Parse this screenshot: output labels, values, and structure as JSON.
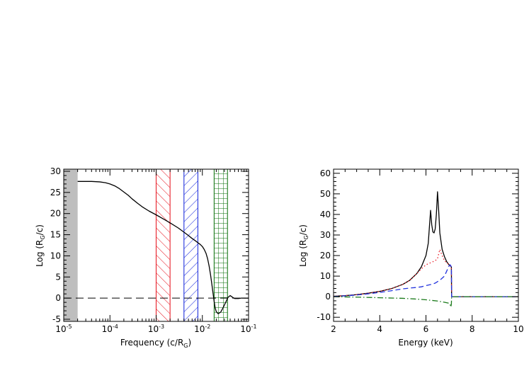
{
  "chart_data": [
    {
      "type": "line",
      "xlabel": "Frequency (c/R",
      "xlabel_sub": "G",
      "xlabel_end": ")",
      "ylabel": "Log (R",
      "ylabel_sub": "G",
      "ylabel_end": "/c)",
      "xscale": "log",
      "xlim": [
        1e-05,
        0.1
      ],
      "ylim": [
        -5.5,
        30.5
      ],
      "xticks": [
        {
          "value": 1e-05,
          "base": "10",
          "exp": "-5"
        },
        {
          "value": 0.0001,
          "base": "10",
          "exp": "-4"
        },
        {
          "value": 0.001,
          "base": "10",
          "exp": "-3"
        },
        {
          "value": 0.01,
          "base": "10",
          "exp": "-2"
        },
        {
          "value": 0.1,
          "base": "10",
          "exp": "-1"
        }
      ],
      "yticks": [
        "-5",
        "0",
        "5",
        "10",
        "15",
        "20",
        "25",
        "30"
      ],
      "shaded_bands": [
        {
          "x": [
            1e-05,
            2e-05
          ],
          "color": "#bebebe",
          "style": "solid"
        },
        {
          "x": [
            0.001,
            0.002
          ],
          "color": "#e8202a",
          "style": "hatch"
        },
        {
          "x": [
            0.004,
            0.008
          ],
          "color": "#2233dd",
          "style": "hatch-reverse"
        },
        {
          "x": [
            0.018,
            0.035
          ],
          "color": "#1a7a1a",
          "style": "grid"
        }
      ],
      "reference_line": {
        "y": 0,
        "style": "dashed"
      },
      "series": [
        {
          "color": "#000000",
          "x": [
            2e-05,
            4e-05,
            6e-05,
            8e-05,
            0.0001,
            0.00013,
            0.00016,
            0.0002,
            0.00025,
            0.0003,
            0.0004,
            0.0005,
            0.0007,
            0.001,
            0.0015,
            0.002,
            0.003,
            0.004,
            0.005,
            0.006,
            0.007,
            0.008,
            0.009,
            0.01,
            0.011,
            0.012,
            0.013,
            0.014,
            0.015,
            0.016,
            0.017,
            0.018,
            0.019,
            0.02,
            0.022,
            0.025,
            0.028,
            0.032,
            0.036,
            0.04,
            0.045,
            0.05,
            0.06,
            0.07,
            0.08,
            0.1
          ],
          "y": [
            27.6,
            27.6,
            27.5,
            27.3,
            27.0,
            26.5,
            25.9,
            25.1,
            24.3,
            23.5,
            22.4,
            21.6,
            20.6,
            19.7,
            18.6,
            17.8,
            16.6,
            15.6,
            14.8,
            14.1,
            13.6,
            13.1,
            12.7,
            12.2,
            11.5,
            10.6,
            9.3,
            7.6,
            5.6,
            3.4,
            1.2,
            -0.8,
            -2.4,
            -3.2,
            -3.7,
            -3.3,
            -2.3,
            -1.0,
            0.2,
            0.6,
            0.2,
            -0.1,
            -0.1,
            0.0,
            0.0,
            0.0
          ]
        }
      ]
    },
    {
      "type": "line",
      "xlabel": "Energy (keV)",
      "ylabel": "Log (R",
      "ylabel_sub": "G",
      "ylabel_end": "/c)",
      "xlim": [
        2,
        10
      ],
      "ylim": [
        -12,
        62
      ],
      "xticks": [
        "2",
        "4",
        "6",
        "8",
        "10"
      ],
      "yticks": [
        "-10",
        "0",
        "10",
        "20",
        "30",
        "40",
        "50",
        "60"
      ],
      "series": [
        {
          "color": "#000000",
          "style": "solid",
          "x": [
            2,
            2.5,
            3,
            3.5,
            4,
            4.5,
            5,
            5.3,
            5.6,
            5.8,
            6.0,
            6.1,
            6.2,
            6.25,
            6.3,
            6.35,
            6.4,
            6.45,
            6.5,
            6.55,
            6.6,
            6.7,
            6.8,
            6.9,
            7.0,
            7.05,
            7.1,
            7.11,
            7.5,
            8,
            9,
            10
          ],
          "y": [
            0.2,
            0.5,
            1.0,
            1.7,
            2.6,
            3.9,
            6.0,
            8.0,
            11.2,
            14.5,
            20.0,
            26.0,
            42.0,
            35.0,
            31.5,
            31.0,
            33.0,
            40.0,
            51.0,
            42.0,
            31.0,
            23.0,
            19.5,
            17.0,
            15.5,
            15.0,
            14.5,
            0.0,
            0.0,
            0.0,
            0.0,
            0.0
          ]
        },
        {
          "color": "#e8202a",
          "style": "dotted",
          "x": [
            2,
            2.5,
            3,
            3.5,
            4,
            4.5,
            5,
            5.3,
            5.6,
            5.8,
            6.0,
            6.2,
            6.4,
            6.5,
            6.6,
            6.7,
            6.8,
            6.9,
            7.0,
            7.1,
            7.11,
            7.5,
            8,
            9,
            10
          ],
          "y": [
            0.2,
            0.5,
            1.0,
            1.7,
            2.6,
            3.9,
            6.0,
            8.0,
            11.2,
            13.5,
            15.5,
            16.5,
            17.5,
            18.5,
            23.0,
            20.0,
            17.5,
            16.5,
            15.5,
            14.5,
            0.0,
            0.0,
            0.0,
            0.0,
            0.0
          ]
        },
        {
          "color": "#2233dd",
          "style": "dashed",
          "x": [
            2,
            2.5,
            3,
            3.5,
            4,
            4.5,
            5,
            5.3,
            5.6,
            5.8,
            6.0,
            6.2,
            6.4,
            6.6,
            6.8,
            6.9,
            7.0,
            7.05,
            7.1,
            7.11,
            7.5,
            8,
            9,
            10
          ],
          "y": [
            0.1,
            0.4,
            0.8,
            1.4,
            2.1,
            2.9,
            3.8,
            4.2,
            4.5,
            4.8,
            5.4,
            5.9,
            6.6,
            8.0,
            10.0,
            12.5,
            15.0,
            15.5,
            14.5,
            0.0,
            0.0,
            0.0,
            0.0,
            0.0
          ]
        },
        {
          "color": "#1a7a1a",
          "style": "dashdot",
          "x": [
            2,
            3,
            4,
            5,
            5.5,
            6,
            6.5,
            6.8,
            7.0,
            7.05,
            7.08,
            7.1,
            7.11,
            7.5,
            8,
            9,
            10
          ],
          "y": [
            0.0,
            -0.2,
            -0.5,
            -0.8,
            -1.1,
            -1.5,
            -2.1,
            -2.7,
            -3.2,
            -4.0,
            -5.0,
            -3.5,
            0.0,
            0.0,
            0.0,
            0.0,
            0.0
          ]
        }
      ]
    }
  ]
}
